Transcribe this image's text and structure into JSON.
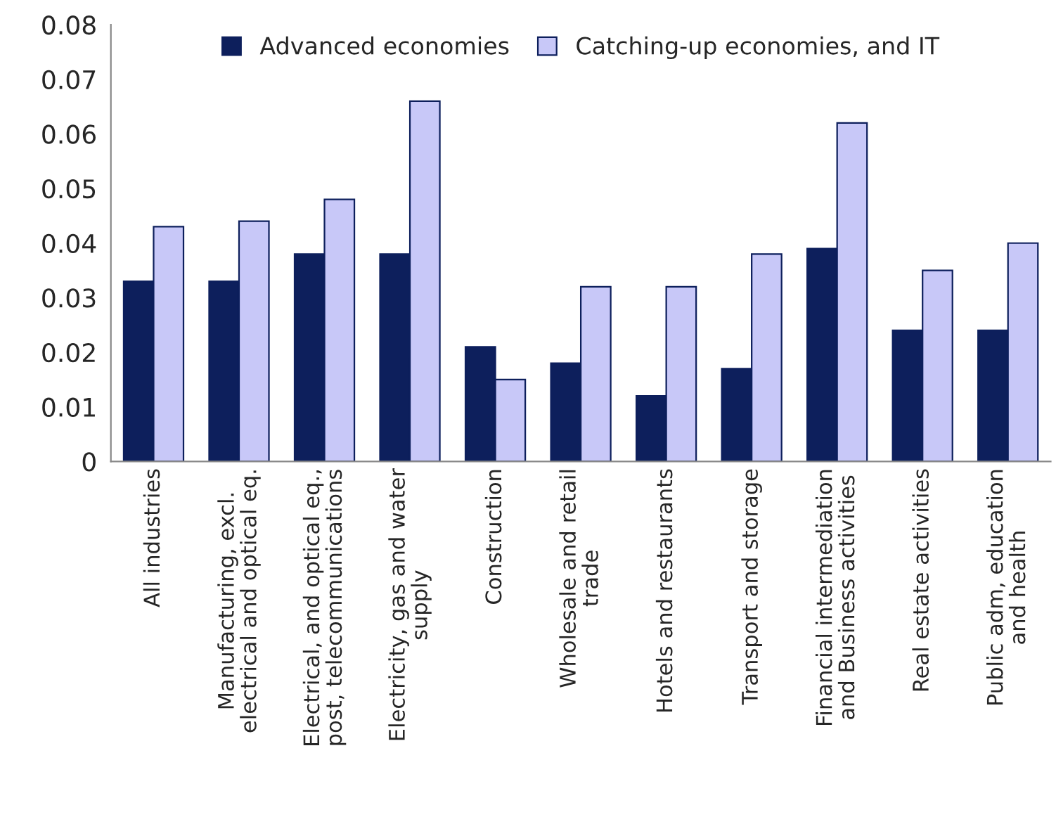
{
  "chart_data": {
    "type": "bar",
    "categories": [
      "All industries",
      "Manufacturing, excl.\nelectrical and optical eq.",
      "Electrical, and optical eq.,\npost, telecommunications",
      "Electricity, gas and water\nsupply",
      "Construction",
      "Wholesale and retail\ntrade",
      "Hotels and restaurants",
      "Transport and storage",
      "Financial intermediation\nand Business activities",
      "Real estate activities",
      "Public adm, education\nand health"
    ],
    "series": [
      {
        "name": "Advanced economies",
        "color": "#0d1f5c",
        "values": [
          0.033,
          0.033,
          0.038,
          0.038,
          0.021,
          0.018,
          0.012,
          0.017,
          0.039,
          0.024,
          0.024
        ]
      },
      {
        "name": "Catching-up economies, and IT",
        "color": "#c8c8f8",
        "values": [
          0.043,
          0.044,
          0.048,
          0.066,
          0.015,
          0.032,
          0.032,
          0.038,
          0.062,
          0.035,
          0.04
        ]
      }
    ],
    "ylim": [
      0,
      0.08
    ],
    "yticks": [
      {
        "value": 0,
        "label": "0"
      },
      0.01,
      0.02,
      0.03,
      0.04,
      0.05,
      0.06,
      0.07,
      0.08
    ],
    "grid": false,
    "legend": "top"
  }
}
